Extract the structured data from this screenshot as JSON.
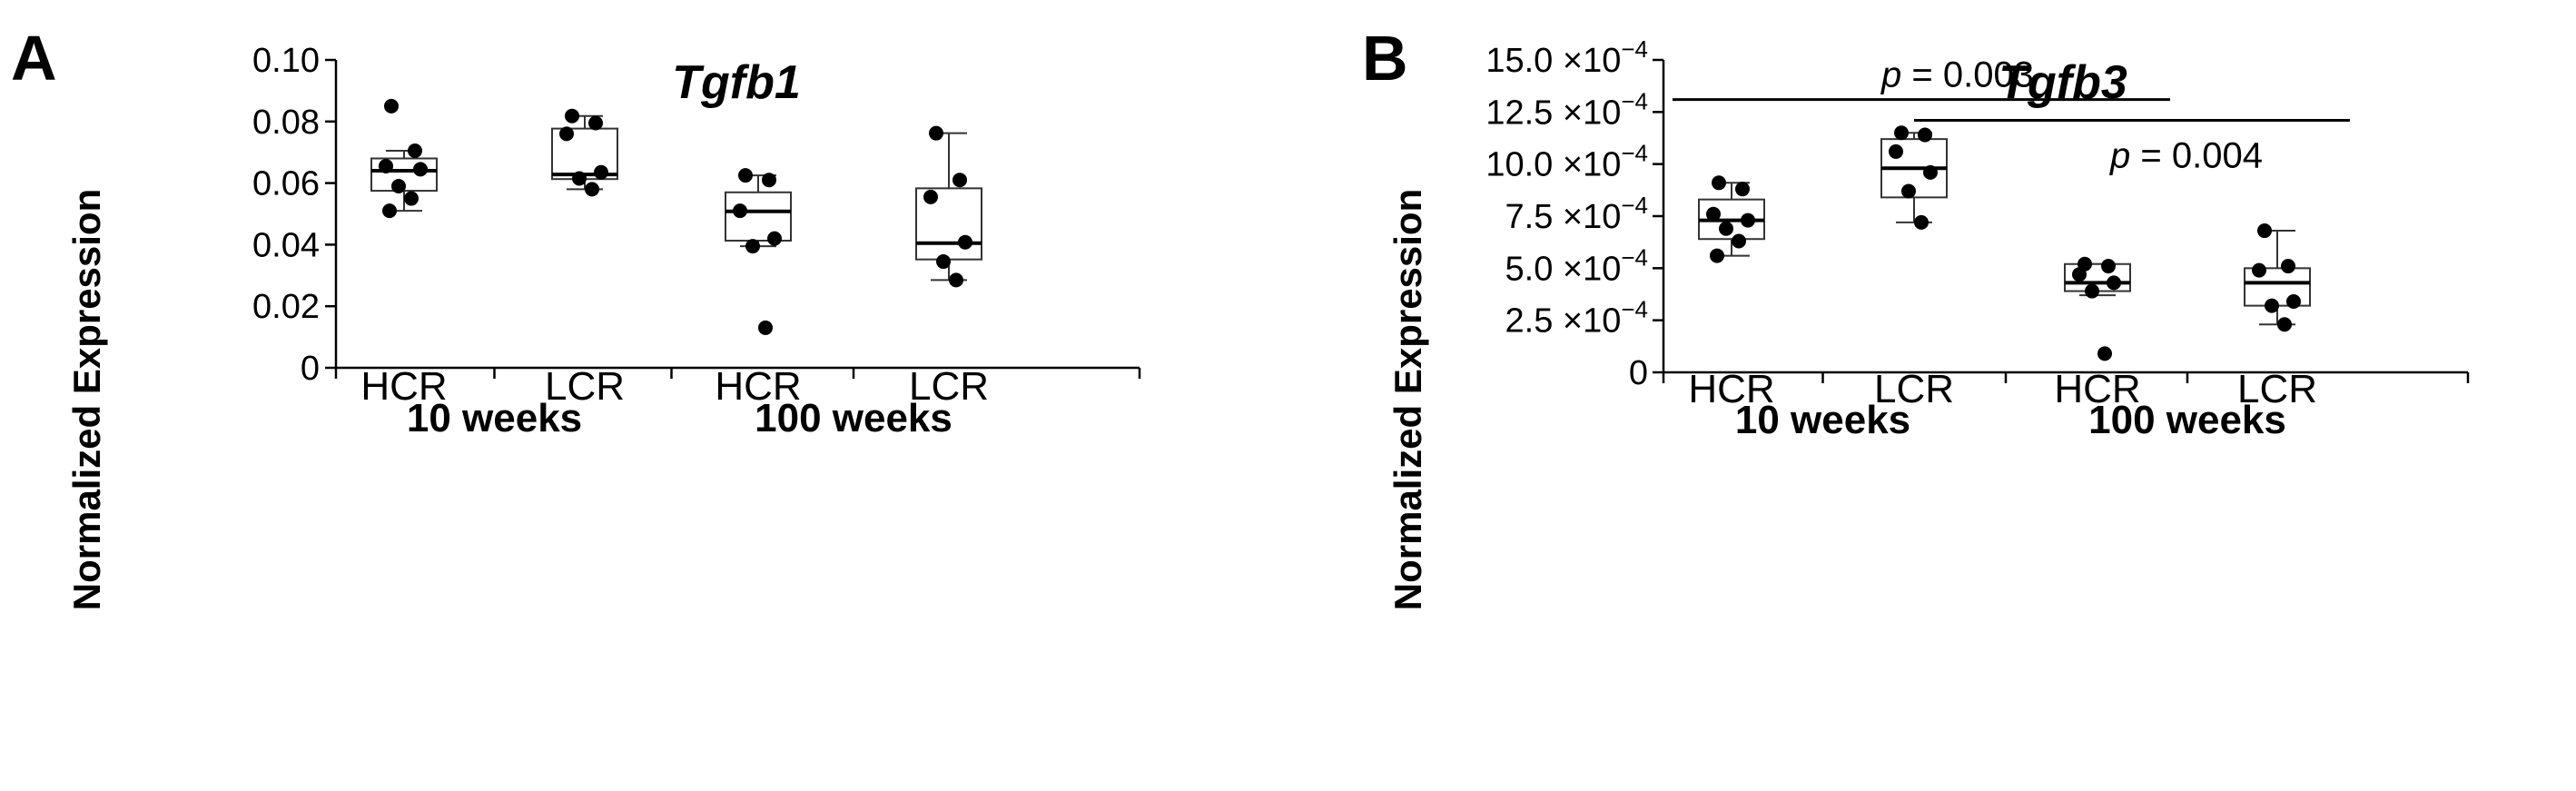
{
  "chart_data": [
    {
      "panel": "A",
      "type": "box",
      "title": "Tgfb1",
      "ylabel": "Normalized Expression",
      "ylim": [
        0,
        0.1
      ],
      "yticks": [
        0,
        0.02,
        0.04,
        0.06,
        0.08,
        0.1
      ],
      "ytick_labels": [
        "0",
        "0.02",
        "0.04",
        "0.06",
        "0.08",
        "0.10"
      ],
      "categories": [
        "HCR",
        "LCR",
        "HCR",
        "LCR"
      ],
      "groups": [
        {
          "label": "10 weeks",
          "span": [
            0,
            1
          ]
        },
        {
          "label": "100 weeks",
          "span": [
            2,
            3
          ]
        }
      ],
      "boxes": [
        {
          "q1": 0.0575,
          "median": 0.064,
          "q3": 0.068,
          "whislo": 0.051,
          "whishi": 0.0705
        },
        {
          "q1": 0.0613,
          "median": 0.0628,
          "q3": 0.0777,
          "whislo": 0.058,
          "whishi": 0.0818
        },
        {
          "q1": 0.0413,
          "median": 0.0508,
          "q3": 0.057,
          "whislo": 0.0395,
          "whishi": 0.0625
        },
        {
          "q1": 0.0352,
          "median": 0.0405,
          "q3": 0.0583,
          "whislo": 0.0285,
          "whishi": 0.0762
        }
      ],
      "points": [
        [
          0.085,
          0.0705,
          0.0655,
          0.0645,
          0.059,
          0.055,
          0.051
        ],
        [
          0.0818,
          0.0795,
          0.076,
          0.0635,
          0.0615,
          0.058
        ],
        [
          0.0625,
          0.061,
          0.051,
          0.042,
          0.0395,
          0.013
        ],
        [
          0.0762,
          0.061,
          0.0555,
          0.0408,
          0.0345,
          0.0285
        ]
      ],
      "annotations": []
    },
    {
      "panel": "B",
      "type": "box",
      "title": "Tgfb3",
      "ylabel": "Normalized Expression",
      "ylim": [
        0,
        15.0
      ],
      "yticks": [
        0,
        2.5,
        5.0,
        7.5,
        10.0,
        12.5,
        15.0
      ],
      "ytick_labels": [
        "0",
        "2.5 ×10",
        "5.0 ×10",
        "7.5 ×10",
        "10.0 ×10",
        "12.5 ×10",
        "15.0 ×10"
      ],
      "ytick_exponent": "−4",
      "units_note": "values ×10^-4",
      "categories": [
        "HCR",
        "LCR",
        "HCR",
        "LCR"
      ],
      "groups": [
        {
          "label": "10 weeks",
          "span": [
            0,
            1
          ]
        },
        {
          "label": "100 weeks",
          "span": [
            2,
            3
          ]
        }
      ],
      "boxes": [
        {
          "q1": 6.4,
          "median": 7.3,
          "q3": 8.3,
          "whislo": 5.6,
          "whishi": 9.1
        },
        {
          "q1": 8.4,
          "median": 9.8,
          "q3": 11.2,
          "whislo": 7.2,
          "whishi": 11.5
        },
        {
          "q1": 3.9,
          "median": 4.3,
          "q3": 5.2,
          "whislo": 3.7,
          "whishi": 5.2
        },
        {
          "q1": 3.2,
          "median": 4.3,
          "q3": 5.0,
          "whislo": 2.3,
          "whishi": 6.8
        }
      ],
      "points": [
        [
          9.1,
          8.8,
          7.6,
          7.3,
          6.9,
          6.3,
          5.6
        ],
        [
          11.5,
          11.4,
          10.6,
          9.6,
          8.7,
          7.2
        ],
        [
          5.2,
          5.1,
          4.7,
          4.3,
          3.9,
          0.9
        ],
        [
          6.8,
          5.1,
          4.9,
          3.4,
          3.2,
          2.3
        ]
      ],
      "annotations": [
        {
          "text_prefix": "p",
          "text_value": " = 0.003",
          "from": 0,
          "to": 2,
          "level": 13.1
        },
        {
          "text_prefix": "p",
          "text_value": " = 0.004",
          "from": 1,
          "to": 3,
          "level": 12.1
        }
      ]
    }
  ]
}
